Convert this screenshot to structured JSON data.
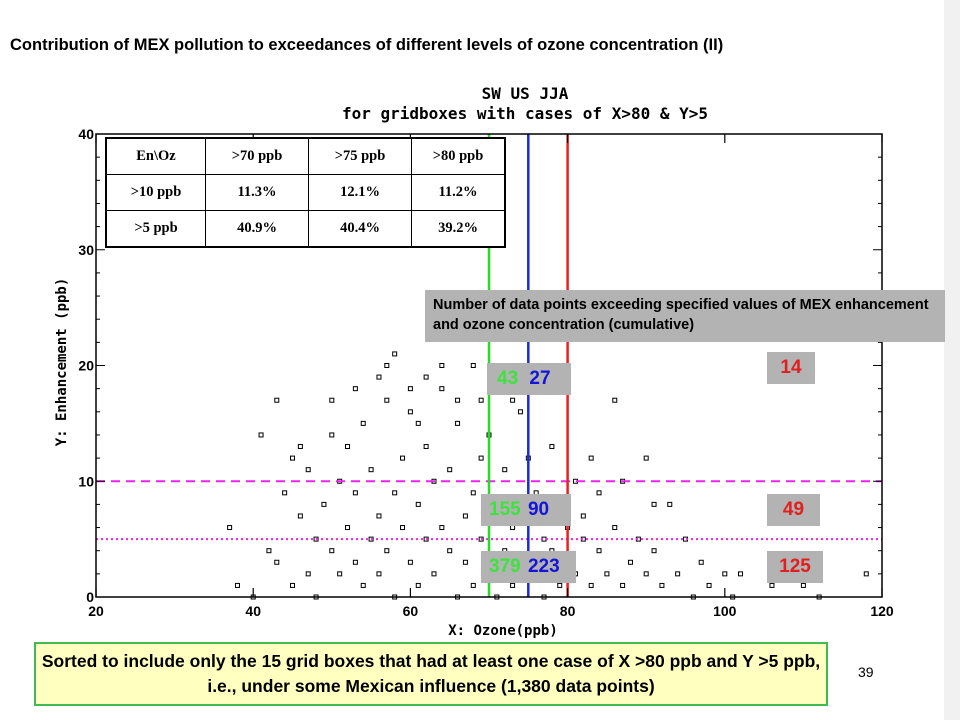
{
  "slide": {
    "title": "Contribution of MEX pollution to exceedances of different levels of ozone concentration (II)",
    "caption": "Sorted to include only the 15 grid boxes that had at least one case of X >80 ppb and Y >5 ppb, i.e., under some Mexican influence (1,380 data points)",
    "page_number": "39"
  },
  "chart_data": {
    "type": "scatter",
    "title": "SW US JJA",
    "subtitle": "for gridboxes with cases of X>80 & Y>5",
    "xlabel": "X: Ozone(ppb)",
    "ylabel": "Y: Enhancement (ppb)",
    "xlim": [
      20,
      120
    ],
    "ylim": [
      0,
      40
    ],
    "xticks": [
      20,
      40,
      60,
      80,
      100,
      120
    ],
    "yticks": [
      0,
      10,
      20,
      30,
      40
    ],
    "marker": "open-square",
    "point_count": 1380,
    "scatter_points": [
      [
        37,
        6
      ],
      [
        38,
        1
      ],
      [
        40,
        0
      ],
      [
        41,
        14
      ],
      [
        42,
        4
      ],
      [
        43,
        3
      ],
      [
        44,
        9
      ],
      [
        45,
        12
      ],
      [
        45,
        1
      ],
      [
        46,
        7
      ],
      [
        47,
        11
      ],
      [
        47,
        2
      ],
      [
        48,
        5
      ],
      [
        48,
        0
      ],
      [
        49,
        8
      ],
      [
        50,
        4
      ],
      [
        50,
        14
      ],
      [
        51,
        10
      ],
      [
        51,
        2
      ],
      [
        52,
        6
      ],
      [
        52,
        13
      ],
      [
        53,
        3
      ],
      [
        53,
        9
      ],
      [
        54,
        15
      ],
      [
        54,
        1
      ],
      [
        55,
        5
      ],
      [
        55,
        11
      ],
      [
        56,
        7
      ],
      [
        56,
        2
      ],
      [
        57,
        17
      ],
      [
        57,
        4
      ],
      [
        58,
        9
      ],
      [
        58,
        0
      ],
      [
        59,
        12
      ],
      [
        59,
        6
      ],
      [
        60,
        3
      ],
      [
        60,
        16
      ],
      [
        61,
        8
      ],
      [
        61,
        1
      ],
      [
        62,
        13
      ],
      [
        62,
        5
      ],
      [
        63,
        10
      ],
      [
        63,
        2
      ],
      [
        64,
        18
      ],
      [
        64,
        6
      ],
      [
        65,
        4
      ],
      [
        65,
        11
      ],
      [
        66,
        0
      ],
      [
        66,
        15
      ],
      [
        67,
        7
      ],
      [
        67,
        3
      ],
      [
        68,
        9
      ],
      [
        68,
        1
      ],
      [
        69,
        12
      ],
      [
        69,
        5
      ],
      [
        70,
        2
      ],
      [
        70,
        14
      ],
      [
        71,
        8
      ],
      [
        71,
        0
      ],
      [
        72,
        4
      ],
      [
        72,
        11
      ],
      [
        73,
        6
      ],
      [
        73,
        1
      ],
      [
        74,
        16
      ],
      [
        74,
        3
      ],
      [
        75,
        7
      ],
      [
        75,
        12
      ],
      [
        76,
        2
      ],
      [
        76,
        9
      ],
      [
        77,
        5
      ],
      [
        77,
        0
      ],
      [
        78,
        13
      ],
      [
        78,
        4
      ],
      [
        79,
        8
      ],
      [
        79,
        1
      ],
      [
        80,
        6
      ],
      [
        80,
        3
      ],
      [
        81,
        10
      ],
      [
        81,
        2
      ],
      [
        82,
        5
      ],
      [
        82,
        7
      ],
      [
        83,
        1
      ],
      [
        84,
        4
      ],
      [
        84,
        9
      ],
      [
        85,
        2
      ],
      [
        86,
        6
      ],
      [
        87,
        1
      ],
      [
        88,
        3
      ],
      [
        89,
        5
      ],
      [
        90,
        12
      ],
      [
        90,
        2
      ],
      [
        91,
        4
      ],
      [
        92,
        1
      ],
      [
        93,
        8
      ],
      [
        94,
        2
      ],
      [
        95,
        5
      ],
      [
        96,
        0
      ],
      [
        97,
        3
      ],
      [
        98,
        1
      ],
      [
        100,
        2
      ],
      [
        101,
        0
      ],
      [
        102,
        2
      ],
      [
        106,
        1
      ],
      [
        108,
        2
      ],
      [
        110,
        1
      ],
      [
        112,
        0
      ],
      [
        118,
        2
      ],
      [
        43,
        17
      ],
      [
        50,
        17
      ],
      [
        56,
        19
      ],
      [
        60,
        18
      ],
      [
        62,
        19
      ],
      [
        64,
        20
      ],
      [
        66,
        17
      ],
      [
        73,
        17
      ],
      [
        75,
        20
      ],
      [
        78,
        18
      ],
      [
        58,
        21
      ],
      [
        68,
        20
      ],
      [
        46,
        13
      ],
      [
        53,
        18
      ],
      [
        57,
        20
      ],
      [
        61,
        15
      ],
      [
        69,
        17
      ],
      [
        86,
        17
      ],
      [
        87,
        10
      ],
      [
        83,
        12
      ],
      [
        91,
        8
      ]
    ],
    "vertical_lines": [
      {
        "x": 70,
        "color": "#22dd22"
      },
      {
        "x": 75,
        "color": "#1a2bd6"
      },
      {
        "x": 80,
        "color": "#e82020"
      }
    ],
    "horizontal_lines": [
      {
        "y": 10,
        "color": "#ee22ee",
        "style": "dashed"
      },
      {
        "y": 5,
        "color": "#ee22ee",
        "style": "dotted"
      }
    ],
    "table": {
      "header": [
        "En\\Oz",
        ">70 ppb",
        ">75 ppb",
        ">80 ppb"
      ],
      "rows": [
        [
          ">10 ppb",
          "11.3%",
          "12.1%",
          "11.2%"
        ],
        [
          ">5 ppb",
          "40.9%",
          "40.4%",
          "39.2%"
        ]
      ]
    },
    "annotation": "Number of data points exceeding specified values of MEX enhancement and ozone concentration (cumulative)",
    "counts": {
      "y_above_15": {
        "x_70": "43",
        "x_75": "27",
        "x_80": "14"
      },
      "y_above_10": {
        "x_70": "155",
        "x_75": "90",
        "x_80": "49"
      },
      "y_above_5": {
        "x_70": "379",
        "x_75": "223",
        "x_80": "125"
      }
    },
    "colors": {
      "x70": "#3ee23e",
      "x75": "#1515d8",
      "x80": "#e02020",
      "threshold": "#ee22ee",
      "count_box": "#b3b3b3"
    }
  }
}
